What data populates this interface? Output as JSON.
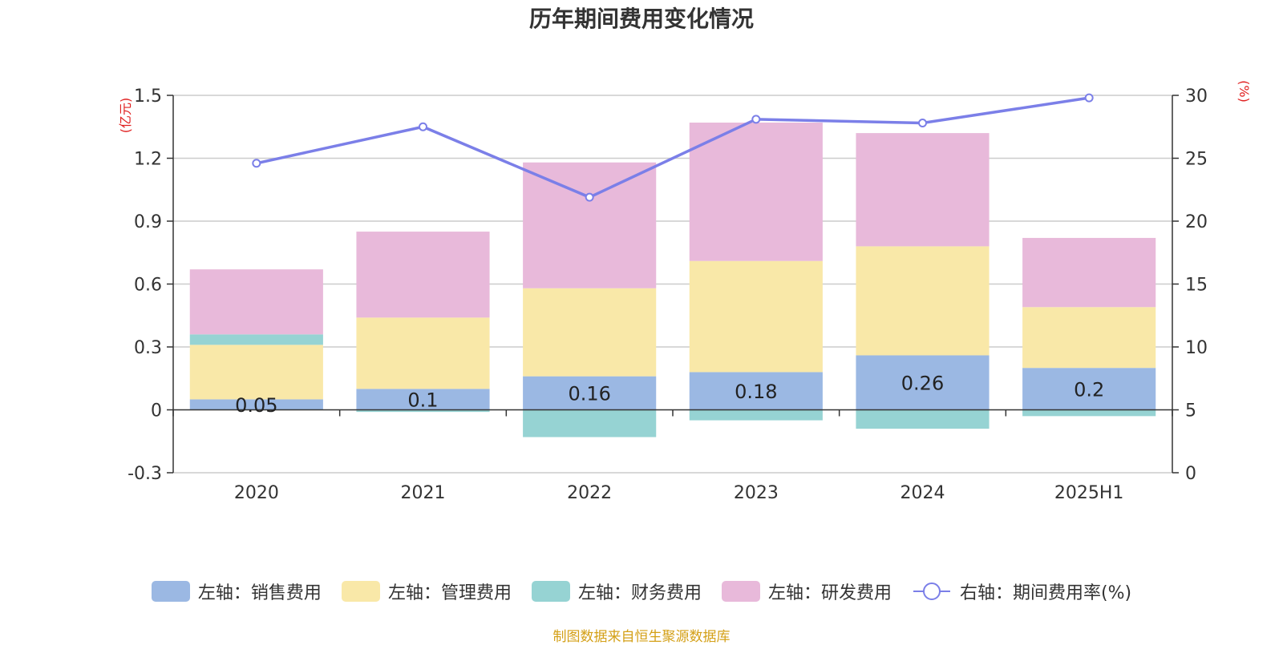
{
  "chart_data": {
    "type": "bar",
    "title": "历年期间费用变化情况",
    "categories": [
      "2020",
      "2021",
      "2022",
      "2023",
      "2024",
      "2025H1"
    ],
    "y_left": {
      "label": "(亿元)",
      "min": -0.3,
      "max": 1.5,
      "ticks": [
        "-0.3",
        "0",
        "0.3",
        "0.6",
        "0.9",
        "1.2",
        "1.5"
      ]
    },
    "y_right": {
      "label": "(%)",
      "min": 0,
      "max": 30,
      "ticks": [
        "0",
        "5",
        "10",
        "15",
        "20",
        "25",
        "30"
      ]
    },
    "series": [
      {
        "name": "左轴：销售费用",
        "type": "bar",
        "color": "#9bb8e3",
        "values": [
          0.05,
          0.1,
          0.16,
          0.18,
          0.26,
          0.2
        ],
        "labels": [
          "0.05",
          "0.1",
          "0.16",
          "0.18",
          "0.26",
          "0.2"
        ]
      },
      {
        "name": "左轴：管理费用",
        "type": "bar",
        "color": "#f9e8a8",
        "values": [
          0.26,
          0.34,
          0.42,
          0.53,
          0.52,
          0.29
        ]
      },
      {
        "name": "左轴：财务费用",
        "type": "bar",
        "color": "#96d3d3",
        "values": [
          0.05,
          -0.01,
          -0.13,
          -0.05,
          -0.09,
          -0.03
        ]
      },
      {
        "name": "左轴：研发费用",
        "type": "bar",
        "color": "#e8b9da",
        "values": [
          0.31,
          0.41,
          0.6,
          0.66,
          0.54,
          0.33
        ]
      },
      {
        "name": "右轴：期间费用率(%)",
        "type": "line",
        "color": "#7b7fe8",
        "values": [
          24.6,
          27.5,
          21.9,
          28.1,
          27.8,
          29.8
        ]
      }
    ],
    "grid": true,
    "legend_position": "bottom"
  },
  "source_note": "制图数据来自恒生聚源数据库"
}
